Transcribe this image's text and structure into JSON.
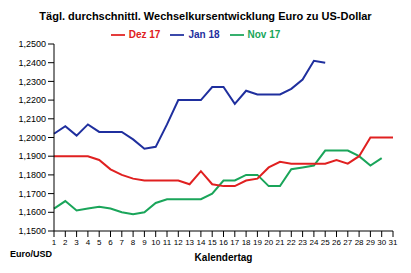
{
  "chart_data": {
    "type": "line",
    "title": "Tägl. durchschnittl. Wechselkursentwicklung Euro zu US-Dollar",
    "x_label": "Kalendertag",
    "y_label": "Euro/USD",
    "categories": [
      "1",
      "2",
      "3",
      "4",
      "5",
      "6",
      "7",
      "8",
      "9",
      "10",
      "11",
      "12",
      "13",
      "14",
      "15",
      "16",
      "17",
      "18",
      "19",
      "20",
      "21",
      "22",
      "23",
      "24",
      "25",
      "26",
      "27",
      "28",
      "29",
      "30",
      "31"
    ],
    "series": [
      {
        "name": "Nov 17",
        "color": "#1aa55a",
        "values": [
          1.162,
          1.166,
          1.161,
          1.162,
          1.163,
          1.162,
          1.16,
          1.159,
          1.16,
          1.165,
          1.167,
          1.167,
          1.167,
          1.167,
          1.17,
          1.177,
          1.177,
          1.18,
          1.18,
          1.174,
          1.174,
          1.183,
          1.184,
          1.185,
          1.193,
          1.193,
          1.193,
          1.19,
          1.185,
          1.189,
          null
        ]
      },
      {
        "name": "Dez 17",
        "color": "#e02020",
        "values": [
          1.19,
          1.19,
          1.19,
          1.19,
          1.188,
          1.183,
          1.18,
          1.178,
          1.177,
          1.177,
          1.177,
          1.177,
          1.175,
          1.182,
          1.175,
          1.174,
          1.174,
          1.177,
          1.178,
          1.184,
          1.187,
          1.186,
          1.186,
          1.186,
          1.186,
          1.188,
          1.186,
          1.19,
          1.2,
          1.2,
          1.2
        ]
      },
      {
        "name": "Jan 18",
        "color": "#1f2f9e",
        "values": [
          1.202,
          1.206,
          1.201,
          1.207,
          1.203,
          1.203,
          1.203,
          1.199,
          1.194,
          1.195,
          1.207,
          1.22,
          1.22,
          1.22,
          1.227,
          1.227,
          1.218,
          1.225,
          1.223,
          1.223,
          1.223,
          1.226,
          1.231,
          1.241,
          1.24,
          null,
          null,
          null,
          null,
          null,
          null
        ]
      }
    ],
    "ylim": [
      1.15,
      1.25
    ],
    "yticks": [
      {
        "value": 1.15,
        "label": "1,1500"
      },
      {
        "value": 1.16,
        "label": "1,1600"
      },
      {
        "value": 1.17,
        "label": "1,1700"
      },
      {
        "value": 1.18,
        "label": "1,1800"
      },
      {
        "value": 1.19,
        "label": "1,1900"
      },
      {
        "value": 1.2,
        "label": "1,2000"
      },
      {
        "value": 1.21,
        "label": "1,2100"
      },
      {
        "value": 1.22,
        "label": "1,2200"
      },
      {
        "value": 1.23,
        "label": "1,2300"
      },
      {
        "value": 1.24,
        "label": "1,2400"
      },
      {
        "value": 1.25,
        "label": "1,2500"
      }
    ],
    "grid": false,
    "legend": "top"
  }
}
